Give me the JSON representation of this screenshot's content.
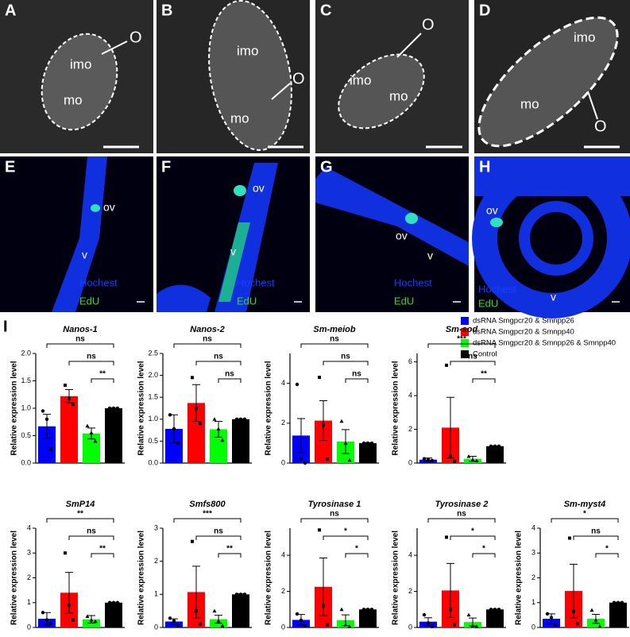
{
  "panels": [
    {
      "letter": "A",
      "labels": [
        "imo",
        "mo",
        "O"
      ]
    },
    {
      "letter": "B",
      "labels": [
        "imo",
        "mo",
        "O"
      ]
    },
    {
      "letter": "C",
      "labels": [
        "imo",
        "mo",
        "O"
      ]
    },
    {
      "letter": "D",
      "labels": [
        "imo",
        "mo",
        "O"
      ]
    },
    {
      "letter": "E",
      "labels": [
        "ov",
        "v",
        "Hochest",
        "EdU"
      ]
    },
    {
      "letter": "F",
      "labels": [
        "ov",
        "v",
        "Hochest",
        "EdU"
      ]
    },
    {
      "letter": "G",
      "labels": [
        "ov",
        "v",
        "Hochest",
        "EdU"
      ]
    },
    {
      "letter": "H",
      "labels": [
        "ov",
        "v",
        "Hochest",
        "EdU"
      ]
    }
  ],
  "chart_panel": "I",
  "legend": [
    {
      "name": "dsRNA Smgpcr20 & Smnpp26",
      "color": "#0000ff"
    },
    {
      "name": "dsRNA Smgpcr20 & Smnpp40",
      "color": "#ff0000"
    },
    {
      "name": "dsRNA Smgpcr20 & Smnpp26 & Smnpp40",
      "color": "#00ff00"
    },
    {
      "name": "Control",
      "color": "#000000"
    }
  ],
  "chart_data": [
    {
      "type": "bar",
      "title": "Nanos-1",
      "y_label": "Relative expression level",
      "ylim": [
        0,
        2.0
      ],
      "yticks": [
        {
          "value": 0,
          "label": "0.0"
        },
        {
          "value": 0.5,
          "label": "0.5"
        },
        {
          "value": 1,
          "label": "1.0"
        },
        {
          "value": 1.5,
          "label": "1.5"
        },
        {
          "value": 2,
          "label": "2.0"
        }
      ],
      "values": [
        0.67,
        1.22,
        0.54,
        1.0
      ],
      "errors": [
        0.22,
        0.12,
        0.1,
        0.01
      ],
      "points": [
        [
          0.95,
          0.8,
          0.25
        ],
        [
          1.42,
          1.18,
          1.07
        ],
        [
          0.68,
          0.55,
          0.4
        ],
        [
          1,
          1,
          1
        ]
      ],
      "significance": [
        "ns",
        "ns",
        "**"
      ]
    },
    {
      "type": "bar",
      "title": "Nanos-2",
      "y_label": "Relative expression level",
      "ylim": [
        0,
        2.5
      ],
      "yticks": [
        {
          "value": 0,
          "label": "0.0"
        },
        {
          "value": 0.5,
          "label": "0.5"
        },
        {
          "value": 1,
          "label": "1.0"
        },
        {
          "value": 1.5,
          "label": "1.5"
        },
        {
          "value": 2,
          "label": "2.0"
        },
        {
          "value": 2.5,
          "label": "2.5"
        }
      ],
      "values": [
        0.78,
        1.37,
        0.77,
        1.0
      ],
      "errors": [
        0.32,
        0.42,
        0.18,
        0.01
      ],
      "points": [
        [
          1.1,
          0.78,
          0.45
        ],
        [
          1.95,
          1.25,
          0.9
        ],
        [
          1.0,
          0.78,
          0.52
        ],
        [
          1,
          1,
          1
        ]
      ],
      "significance": [
        "ns",
        "ns",
        "ns"
      ]
    },
    {
      "type": "bar",
      "title": "Sm-meiob",
      "y_label": "Relative expression level",
      "ylim": [
        0,
        5.5
      ],
      "yticks": [
        0,
        2,
        4
      ],
      "values": [
        1.38,
        2.13,
        1.08,
        1.0
      ],
      "errors": [
        0.85,
        1.0,
        0.6,
        0.02
      ],
      "points": [
        [
          3.95,
          0.2,
          0.0
        ],
        [
          4.3,
          1.9,
          0.2
        ],
        [
          2.1,
          1.0,
          0.15
        ],
        [
          1,
          1,
          1
        ]
      ],
      "significance": [
        "ns",
        "ns",
        "ns"
      ]
    },
    {
      "type": "bar",
      "title": "Sm-sod",
      "y_label": "Relative expression level",
      "ylim": [
        0,
        6.5
      ],
      "yticks": [
        0,
        2,
        4,
        6
      ],
      "values": [
        0.2,
        2.1,
        0.25,
        1.0
      ],
      "errors": [
        0.1,
        1.8,
        0.15,
        0.02
      ],
      "points": [
        [
          0.25,
          0.2,
          0.15
        ],
        [
          5.8,
          0.4,
          0.1
        ],
        [
          0.4,
          0.2,
          0.15
        ],
        [
          1,
          1,
          1
        ]
      ],
      "significance": [
        "***",
        "ns",
        "**"
      ]
    },
    {
      "type": "bar",
      "title": "SmP14",
      "y_label": "Relative expression level",
      "ylim": [
        0,
        4
      ],
      "yticks": [
        0,
        1,
        2,
        3,
        4
      ],
      "values": [
        0.35,
        1.4,
        0.33,
        1.0
      ],
      "errors": [
        0.25,
        0.82,
        0.15,
        0.02
      ],
      "points": [
        [
          0.6,
          0.3,
          0.15
        ],
        [
          3.0,
          0.9,
          0.3
        ],
        [
          0.45,
          0.3,
          0.25
        ],
        [
          1,
          1,
          1
        ]
      ],
      "significance": [
        "**",
        "ns",
        "**"
      ]
    },
    {
      "type": "bar",
      "title": "Smfs800",
      "y_label": "Relative expression level",
      "ylim": [
        0,
        3
      ],
      "yticks": [
        0,
        1,
        2,
        3
      ],
      "values": [
        0.18,
        1.07,
        0.25,
        1.0
      ],
      "errors": [
        0.08,
        0.78,
        0.12,
        0.02
      ],
      "points": [
        [
          0.28,
          0.2,
          0.05
        ],
        [
          2.6,
          0.5,
          0.1
        ],
        [
          0.5,
          0.2,
          0.05
        ],
        [
          1,
          1,
          1
        ]
      ],
      "significance": [
        "***",
        "ns",
        "**"
      ]
    },
    {
      "type": "bar",
      "title": "Tyrosinase 1",
      "y_label": "Relative expression level",
      "ylim": [
        0,
        5.5
      ],
      "yticks": [
        0,
        2,
        4
      ],
      "values": [
        0.42,
        2.25,
        0.4,
        1.0
      ],
      "errors": [
        0.3,
        1.6,
        0.3,
        0.02
      ],
      "points": [
        [
          0.75,
          0.4,
          0.1
        ],
        [
          5.4,
          1.2,
          0.15
        ],
        [
          1.0,
          0.15,
          0.05
        ],
        [
          1,
          1,
          1
        ]
      ],
      "significance": [
        "ns",
        "*",
        "*"
      ]
    },
    {
      "type": "bar",
      "title": "Tyrosinase 2",
      "y_label": "Relative expression level",
      "ylim": [
        0,
        5.5
      ],
      "yticks": [
        0,
        2,
        4
      ],
      "values": [
        0.32,
        2.05,
        0.3,
        1.0
      ],
      "errors": [
        0.22,
        1.5,
        0.22,
        0.02
      ],
      "points": [
        [
          0.7,
          0.25,
          0.05
        ],
        [
          5.0,
          1.0,
          0.15
        ],
        [
          0.7,
          0.1,
          0.05
        ],
        [
          1,
          1,
          1
        ]
      ],
      "significance": [
        "ns",
        "*",
        "*"
      ]
    },
    {
      "type": "bar",
      "title": "Sm-myst4",
      "y_label": "Relative expression level",
      "ylim": [
        0,
        4
      ],
      "yticks": [
        0,
        1,
        2,
        3,
        4
      ],
      "values": [
        0.35,
        1.47,
        0.35,
        1.0
      ],
      "errors": [
        0.2,
        1.08,
        0.18,
        0.02
      ],
      "points": [
        [
          0.55,
          0.4,
          0.1
        ],
        [
          3.6,
          0.65,
          0.15
        ],
        [
          0.7,
          0.3,
          0.05
        ],
        [
          1,
          1,
          1
        ]
      ],
      "significance": [
        "*",
        "ns",
        "*"
      ]
    }
  ]
}
